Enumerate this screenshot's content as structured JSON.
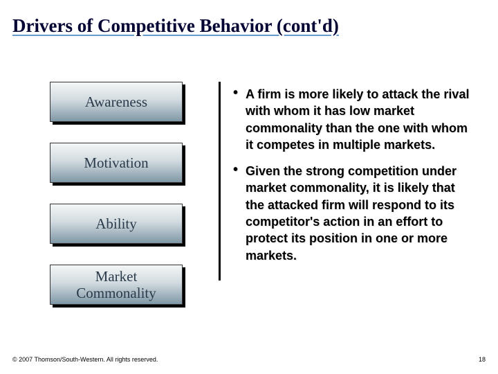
{
  "title": {
    "text": "Drivers of Competitive Behavior (cont'd)",
    "fontsize": 27,
    "color": "#000033"
  },
  "boxes": {
    "items": [
      {
        "label": "Awareness"
      },
      {
        "label": "Motivation"
      },
      {
        "label": "Ability"
      },
      {
        "label": "Market\nCommonality"
      }
    ],
    "fontsize": 21,
    "color": "#2a3a4a",
    "gradient_top": "#f4f6f6",
    "gradient_mid": "#d2dbe0",
    "gradient_bottom": "#7f97a6",
    "border_color": "#333333",
    "shadow_color": "#000000"
  },
  "bullets": {
    "items": [
      {
        "text": "A firm is more likely to attack the rival with whom it has low market commonality than the one with whom it competes in multiple markets."
      },
      {
        "text": "Given the strong competition under market commonality, it is likely that the attacked firm will respond to its competitor's action in an effort to protect its position in one or more markets."
      }
    ],
    "fontsize": 18,
    "color": "#000000",
    "border_color": "#000000"
  },
  "footer": {
    "text": "© 2007 Thomson/South-Western. All rights reserved.",
    "fontsize": 9,
    "color": "#000000"
  },
  "pagenum": {
    "text": "18",
    "fontsize": 9,
    "color": "#000000"
  }
}
